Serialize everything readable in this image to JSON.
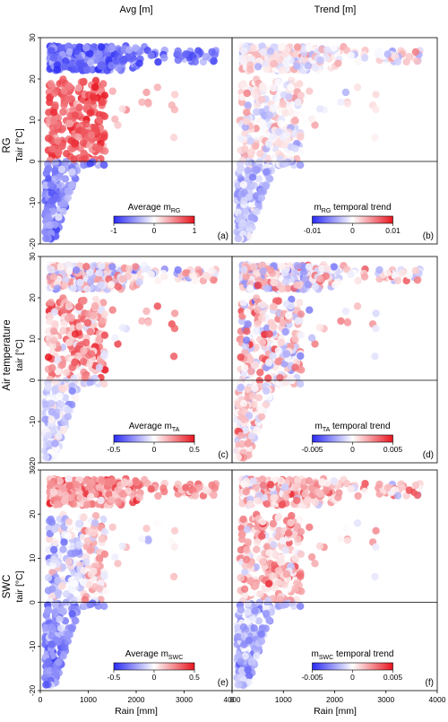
{
  "column_titles": [
    "Avg [m]",
    "Trend [m]"
  ],
  "row_labels": [
    "RG",
    "Air temperature",
    "SWC"
  ],
  "y_axis_titles": [
    "Tair [°C]",
    "tair [°C]",
    "tair [°C]"
  ],
  "x_axis_title": "Rain [mm]",
  "colors": {
    "negative": "#2a2af5",
    "zero": "#ffffff",
    "positive": "#e8141e",
    "frame": "#000000"
  },
  "chart_data": [
    {
      "type": "scatter",
      "panel": "a",
      "legend_title": "Average m",
      "legend_subscript": "RG",
      "legend_suffix": "",
      "colorbar_ticks": [
        "-1",
        "0",
        "1"
      ],
      "colorbar_range": [
        -1,
        1
      ],
      "xlim": [
        0,
        4000
      ],
      "xticks": [
        "0",
        "1000",
        "2000",
        "3000",
        "4000"
      ],
      "ylim": [
        -20,
        30
      ],
      "yticks": [
        "-20",
        "-10",
        "0",
        "10",
        "20",
        "30"
      ],
      "zero_line": 0,
      "color_pattern": "hot_blue_humid_red_cold_blue"
    },
    {
      "type": "scatter",
      "panel": "b",
      "legend_title": "m",
      "legend_subscript": "RG",
      "legend_suffix": " temporal trend",
      "colorbar_ticks": [
        "-0.01",
        "0",
        "0.01"
      ],
      "colorbar_range": [
        -0.01,
        0.01
      ],
      "xlim": [
        0,
        4000
      ],
      "xticks": [
        "0",
        "1000",
        "2000",
        "3000",
        "4000"
      ],
      "ylim": [
        -20,
        30
      ],
      "yticks": [
        "-20",
        "-10",
        "0",
        "10",
        "20",
        "30"
      ],
      "zero_line": 0,
      "color_pattern": "mixed_light"
    },
    {
      "type": "scatter",
      "panel": "c",
      "legend_title": "Average m",
      "legend_subscript": "TA",
      "legend_suffix": "",
      "colorbar_ticks": [
        "-0.5",
        "0",
        "0.5"
      ],
      "colorbar_range": [
        -0.5,
        0.5
      ],
      "xlim": [
        0,
        4000
      ],
      "xticks": [
        "0",
        "1000",
        "2000",
        "3000",
        "4000"
      ],
      "ylim": [
        -20,
        30
      ],
      "yticks": [
        "-20",
        "-10",
        "0",
        "10",
        "20",
        "30"
      ],
      "zero_line": 0,
      "color_pattern": "mixed_red"
    },
    {
      "type": "scatter",
      "panel": "d",
      "legend_title": "m",
      "legend_subscript": "TA",
      "legend_suffix": " temporal trend",
      "colorbar_ticks": [
        "-0.005",
        "0",
        "0.005"
      ],
      "colorbar_range": [
        -0.005,
        0.005
      ],
      "xlim": [
        0,
        4000
      ],
      "xticks": [
        "0",
        "1000",
        "2000",
        "3000",
        "4000"
      ],
      "ylim": [
        -20,
        30
      ],
      "yticks": [
        "-20",
        "-10",
        "0",
        "10",
        "20",
        "30"
      ],
      "zero_line": 0,
      "color_pattern": "mixed_strong"
    },
    {
      "type": "scatter",
      "panel": "e",
      "legend_title": "Average m",
      "legend_subscript": "SWC",
      "legend_suffix": "",
      "colorbar_ticks": [
        "-0.5",
        "0",
        "0.5"
      ],
      "colorbar_range": [
        -0.5,
        0.5
      ],
      "xlim": [
        0,
        4000
      ],
      "xticks": [
        "0",
        "1000",
        "2000",
        "3000",
        "4000"
      ],
      "ylim": [
        -20,
        30
      ],
      "yticks": [
        "-20",
        "-10",
        "0",
        "10",
        "20",
        "30"
      ],
      "zero_line": 0,
      "color_pattern": "hot_red_cold_blue"
    },
    {
      "type": "scatter",
      "panel": "f",
      "legend_title": "m",
      "legend_subscript": "SWC",
      "legend_suffix": " temporal trend",
      "colorbar_ticks": [
        "-0.005",
        "0",
        "0.005"
      ],
      "colorbar_range": [
        -0.005,
        0.005
      ],
      "xlim": [
        0,
        4000
      ],
      "xticks": [
        "0",
        "1000",
        "2000",
        "3000",
        "4000"
      ],
      "ylim": [
        -20,
        30
      ],
      "yticks": [
        "-20",
        "-10",
        "0",
        "10",
        "20",
        "30"
      ],
      "zero_line": 0,
      "color_pattern": "mixed_red_blue"
    }
  ]
}
